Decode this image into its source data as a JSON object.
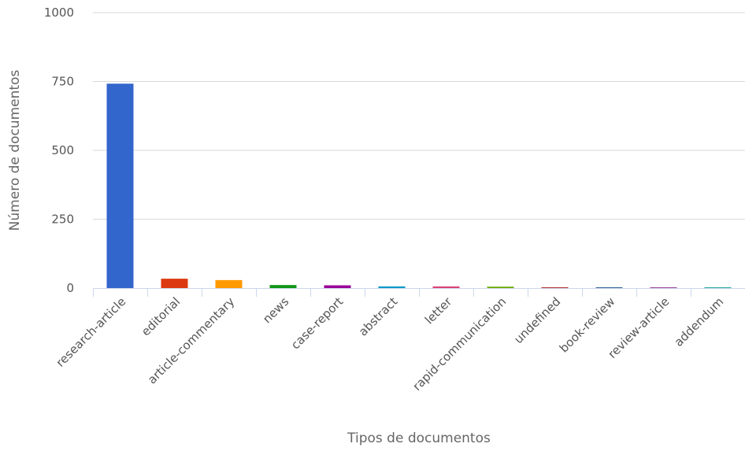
{
  "chart_data": {
    "type": "bar",
    "title": "",
    "xlabel": "Tipos de documentos",
    "ylabel": "Número de documentos",
    "ylim": [
      0,
      1000
    ],
    "yticks": [
      0,
      250,
      500,
      750,
      1000
    ],
    "grid": true,
    "legend": "none",
    "categories": [
      "research-article",
      "editorial",
      "article-commentary",
      "news",
      "case-report",
      "abstract",
      "letter",
      "rapid-communication",
      "undefined",
      "book-review",
      "review-article",
      "addendum"
    ],
    "values": [
      742,
      34,
      29,
      11,
      10,
      6,
      6,
      5,
      1,
      1,
      1,
      1
    ],
    "colors": [
      "#3366cc",
      "#dc3912",
      "#ff9900",
      "#109618",
      "#990099",
      "#0099c6",
      "#dd4477",
      "#66aa00",
      "#b82e2e",
      "#316395",
      "#994499",
      "#22aa99"
    ]
  }
}
